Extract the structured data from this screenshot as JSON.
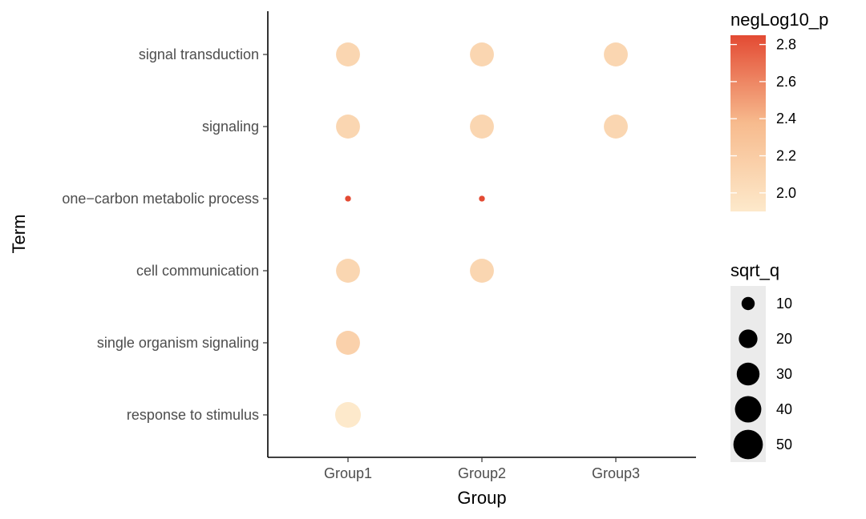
{
  "chart_data": {
    "type": "scatter",
    "title": "",
    "xlabel": "Group",
    "ylabel": "Term",
    "categories_x": [
      "Group1",
      "Group2",
      "Group3"
    ],
    "categories_y": [
      "signal transduction",
      "signaling",
      "one−carbon metabolic process",
      "cell communication",
      "single organism signaling",
      "response to stimulus"
    ],
    "points": [
      {
        "x": "Group1",
        "y": "signal transduction",
        "negLog10_p": 2.1,
        "sqrt_q": 33
      },
      {
        "x": "Group2",
        "y": "signal transduction",
        "negLog10_p": 2.1,
        "sqrt_q": 33
      },
      {
        "x": "Group3",
        "y": "signal transduction",
        "negLog10_p": 2.1,
        "sqrt_q": 33
      },
      {
        "x": "Group1",
        "y": "signaling",
        "negLog10_p": 2.1,
        "sqrt_q": 33
      },
      {
        "x": "Group2",
        "y": "signaling",
        "negLog10_p": 2.1,
        "sqrt_q": 33
      },
      {
        "x": "Group3",
        "y": "signaling",
        "negLog10_p": 2.1,
        "sqrt_q": 33
      },
      {
        "x": "Group1",
        "y": "one−carbon metabolic process",
        "negLog10_p": 2.85,
        "sqrt_q": 2
      },
      {
        "x": "Group2",
        "y": "one−carbon metabolic process",
        "negLog10_p": 2.85,
        "sqrt_q": 2
      },
      {
        "x": "Group1",
        "y": "cell communication",
        "negLog10_p": 2.1,
        "sqrt_q": 33
      },
      {
        "x": "Group2",
        "y": "cell communication",
        "negLog10_p": 2.1,
        "sqrt_q": 33
      },
      {
        "x": "Group1",
        "y": "single organism signaling",
        "negLog10_p": 2.15,
        "sqrt_q": 33
      },
      {
        "x": "Group1",
        "y": "response to stimulus",
        "negLog10_p": 1.9,
        "sqrt_q": 38
      }
    ],
    "color_legend": {
      "title": "negLog10_p",
      "ticks": [
        "2.0",
        "2.2",
        "2.4",
        "2.6",
        "2.8"
      ],
      "range": [
        1.9,
        2.85
      ],
      "low_color": "#fde9cb",
      "high_color": "#e34a33"
    },
    "size_legend": {
      "title": "sqrt_q",
      "values": [
        10,
        20,
        30,
        40,
        50
      ],
      "labels": [
        "10",
        "20",
        "30",
        "40",
        "50"
      ]
    },
    "grid": false,
    "legend_position": "right"
  }
}
